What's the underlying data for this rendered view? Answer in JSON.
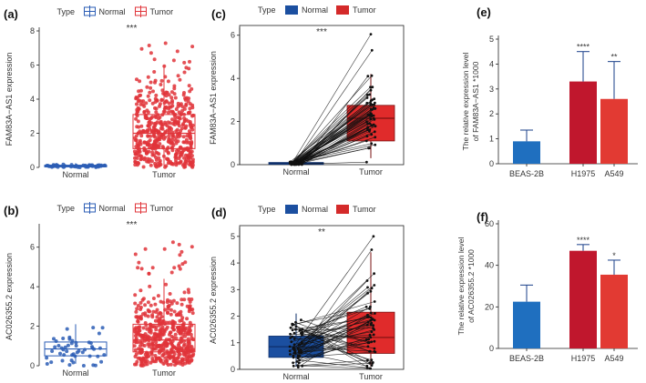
{
  "chart_data": [
    {
      "panel": "(a)",
      "type": "boxplot-scatter",
      "legend_title": "Type",
      "legend": [
        "Normal",
        "Tumor"
      ],
      "ylabel": "FAM83A−AS1 expression",
      "ylim": [
        0,
        8
      ],
      "yticks": [
        "0",
        "2",
        "4",
        "6",
        "8"
      ],
      "categories": [
        "Normal",
        "Tumor"
      ],
      "significance": "***",
      "box": [
        {
          "name": "Normal",
          "min": 0,
          "q1": 0.03,
          "median": 0.08,
          "q3": 0.13,
          "max": 0.25
        },
        {
          "name": "Tumor",
          "min": 0.1,
          "q1": 1.1,
          "median": 2.0,
          "q3": 3.1,
          "max": 6.0
        }
      ],
      "points_n": [
        50,
        500
      ]
    },
    {
      "panel": "(b)",
      "type": "boxplot-scatter",
      "legend_title": "Type",
      "legend": [
        "Normal",
        "Tumor"
      ],
      "ylabel": "AC026355.2 expression",
      "ylim": [
        0,
        7
      ],
      "yticks": [
        "0",
        "2",
        "4",
        "6"
      ],
      "categories": [
        "Normal",
        "Tumor"
      ],
      "significance": "***",
      "box": [
        {
          "name": "Normal",
          "min": 0.1,
          "q1": 0.5,
          "median": 0.85,
          "q3": 1.2,
          "max": 2.1
        },
        {
          "name": "Tumor",
          "min": 0,
          "q1": 0.7,
          "median": 1.3,
          "q3": 2.1,
          "max": 4.4
        }
      ],
      "points_n": [
        50,
        500
      ]
    },
    {
      "panel": "(c)",
      "type": "paired-boxplot",
      "legend_title": "Type",
      "legend": [
        "Normal",
        "Tumor"
      ],
      "ylabel": "FAM83A−AS1 expression",
      "ylim": [
        0,
        6.2
      ],
      "yticks": [
        "0",
        "2",
        "4",
        "6"
      ],
      "categories": [
        "Normal",
        "Tumor"
      ],
      "significance": "***",
      "box": [
        {
          "name": "Normal",
          "min": 0,
          "q1": 0.02,
          "median": 0.06,
          "q3": 0.1,
          "max": 0.2
        },
        {
          "name": "Tumor",
          "min": 0.3,
          "q1": 1.1,
          "median": 2.15,
          "q3": 2.75,
          "max": 4.2
        }
      ],
      "pairs_n": 57
    },
    {
      "panel": "(d)",
      "type": "paired-boxplot",
      "legend_title": "Type",
      "legend": [
        "Normal",
        "Tumor"
      ],
      "ylabel": "AC026355.2 expression",
      "ylim": [
        0,
        5.2
      ],
      "yticks": [
        "0",
        "1",
        "2",
        "3",
        "4",
        "5"
      ],
      "categories": [
        "Normal",
        "Tumor"
      ],
      "significance": "**",
      "box": [
        {
          "name": "Normal",
          "min": 0.1,
          "q1": 0.45,
          "median": 0.85,
          "q3": 1.25,
          "max": 2.1
        },
        {
          "name": "Tumor",
          "min": 0.1,
          "q1": 0.6,
          "median": 1.2,
          "q3": 2.15,
          "max": 4.4
        }
      ],
      "pairs_n": 57
    },
    {
      "panel": "(e)",
      "type": "bar",
      "ylabel": "The relative expression level of FAM83A−AS1 *1000",
      "ylabel_lines": [
        "The relative expression level",
        "of FAM83A−AS1 *1000"
      ],
      "ylim": [
        0,
        5
      ],
      "yticks": [
        "0",
        "1",
        "2",
        "3",
        "4",
        "5"
      ],
      "categories": [
        "BEAS-2B",
        "H1975",
        "A549"
      ],
      "values": [
        0.9,
        3.3,
        2.6
      ],
      "errors": [
        0.45,
        1.2,
        1.5
      ],
      "significance": [
        "",
        "****",
        "**"
      ],
      "colors": [
        "#1f6fbf",
        "#c0172d",
        "#e23a33"
      ]
    },
    {
      "panel": "(f)",
      "type": "bar",
      "ylabel": "The relative expression level of AC026355.2 *1000",
      "ylabel_lines": [
        "The relative expression level",
        "of AC026355.2 *1000"
      ],
      "ylim": [
        0,
        60
      ],
      "yticks": [
        "0",
        "20",
        "40",
        "60"
      ],
      "categories": [
        "BEAS-2B",
        "H1975",
        "A549"
      ],
      "values": [
        22.5,
        47,
        35.5
      ],
      "errors": [
        8,
        3,
        7
      ],
      "significance": [
        "",
        "****",
        "*"
      ],
      "colors": [
        "#1f6fbf",
        "#c0172d",
        "#e23a33"
      ]
    }
  ]
}
